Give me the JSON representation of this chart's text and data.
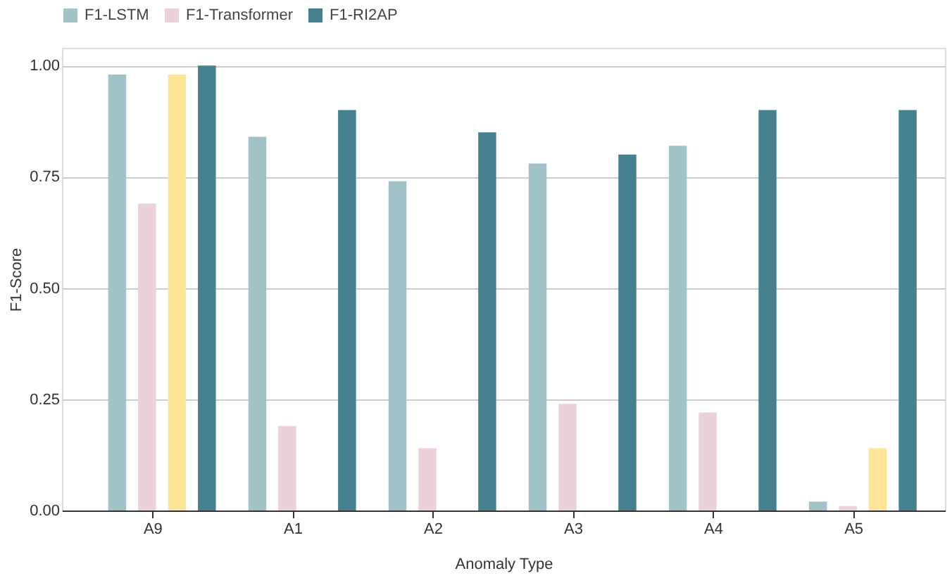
{
  "chart_data": {
    "type": "bar",
    "xlabel": "Anomaly Type",
    "ylabel": "F1-Score",
    "categories": [
      "A9",
      "A1",
      "A2",
      "A3",
      "A4",
      "A5"
    ],
    "series": [
      {
        "name": "F1-LSTM",
        "color": "#a2c4c9",
        "values": [
          0.98,
          0.84,
          0.74,
          0.78,
          0.82,
          0.02
        ]
      },
      {
        "name": "F1-Transformer",
        "color": "#ead1dc",
        "values": [
          0.69,
          0.19,
          0.14,
          0.24,
          0.22,
          0.01
        ]
      },
      {
        "color": "#ffe599",
        "values": [
          0.98,
          0,
          0,
          0,
          0,
          0.14
        ]
      },
      {
        "name": "F1-RI2AP",
        "color": "#45818e",
        "values": [
          1.0,
          0.9,
          0.85,
          0.8,
          0.9,
          0.9
        ]
      }
    ],
    "ylim": [
      0,
      1.04
    ],
    "yticks": [
      {
        "value": 0,
        "label": "0.00"
      },
      {
        "value": 0.25,
        "label": "0.25"
      },
      {
        "value": 0.5,
        "label": "0.50"
      },
      {
        "value": 0.75,
        "label": "0.75"
      },
      {
        "value": 1,
        "label": "1.00"
      }
    ],
    "grid": "y",
    "legend": "top"
  }
}
